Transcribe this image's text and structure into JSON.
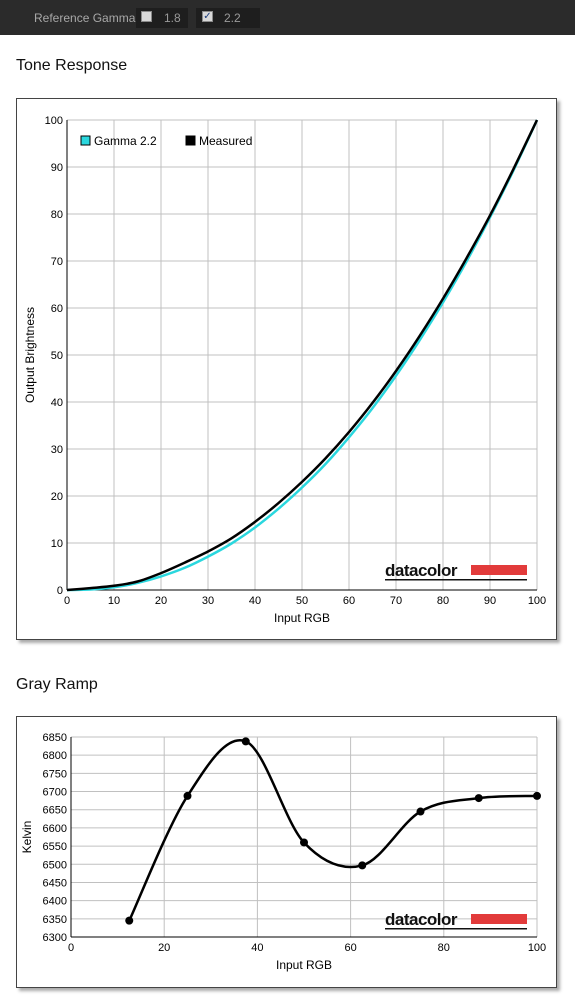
{
  "toolbar": {
    "label": "Reference Gamma:",
    "options": [
      {
        "label": "1.8",
        "checked": false
      },
      {
        "label": "2.2",
        "checked": true
      }
    ]
  },
  "brand": {
    "name": "datacolor",
    "accent": "#e23b3b"
  },
  "colors": {
    "reference": "#2ad7de",
    "measured": "#000000",
    "grid": "#c0c0c0"
  },
  "sections": {
    "tone_title": "Tone Response",
    "gray_title": "Gray Ramp"
  },
  "chart_data": [
    {
      "type": "line",
      "title": "Tone Response",
      "xlabel": "Input RGB",
      "ylabel": "Output Brightness",
      "xlim": [
        0,
        100
      ],
      "ylim": [
        0,
        100
      ],
      "x_ticks": [
        0,
        10,
        20,
        30,
        40,
        50,
        60,
        70,
        80,
        90,
        100
      ],
      "y_ticks": [
        0,
        10,
        20,
        30,
        40,
        50,
        60,
        70,
        80,
        90,
        100
      ],
      "grid": true,
      "legend": "top-left",
      "series": [
        {
          "name": "Gamma 2.2",
          "color": "#2ad7de",
          "x": [
            0,
            5,
            10,
            15,
            20,
            25,
            30,
            35,
            40,
            45,
            50,
            55,
            60,
            65,
            70,
            75,
            80,
            85,
            90,
            95,
            100
          ],
          "values": [
            0,
            0.1,
            0.6,
            1.5,
            2.9,
            4.7,
            7.1,
            9.9,
            13.3,
            17.3,
            21.8,
            26.8,
            32.5,
            38.7,
            45.6,
            53.1,
            61.2,
            69.9,
            79.3,
            89.3,
            100
          ]
        },
        {
          "name": "Measured",
          "color": "#000000",
          "x": [
            0,
            5,
            10,
            15,
            20,
            25,
            30,
            35,
            40,
            45,
            50,
            55,
            60,
            65,
            70,
            75,
            80,
            85,
            90,
            95,
            100
          ],
          "values": [
            0,
            0.4,
            0.9,
            1.8,
            3.6,
            5.8,
            8.2,
            11.0,
            14.5,
            18.5,
            23.0,
            28.0,
            33.6,
            39.8,
            46.6,
            54.0,
            62.0,
            70.6,
            79.7,
            89.6,
            100
          ]
        }
      ]
    },
    {
      "type": "line",
      "title": "Gray Ramp",
      "xlabel": "Input RGB",
      "ylabel": "Kelvin",
      "xlim": [
        0,
        100
      ],
      "ylim": [
        6300,
        6850
      ],
      "x_ticks": [
        0,
        20,
        40,
        60,
        80,
        100
      ],
      "y_ticks": [
        6300,
        6350,
        6400,
        6450,
        6500,
        6550,
        6600,
        6650,
        6700,
        6750,
        6800,
        6850
      ],
      "grid": true,
      "series": [
        {
          "color": "#000000",
          "x": [
            12.5,
            25,
            37.5,
            50,
            62.5,
            75,
            87.5,
            100
          ],
          "values": [
            6345,
            6688,
            6838,
            6560,
            6497,
            6645,
            6682,
            6688
          ]
        }
      ]
    }
  ]
}
